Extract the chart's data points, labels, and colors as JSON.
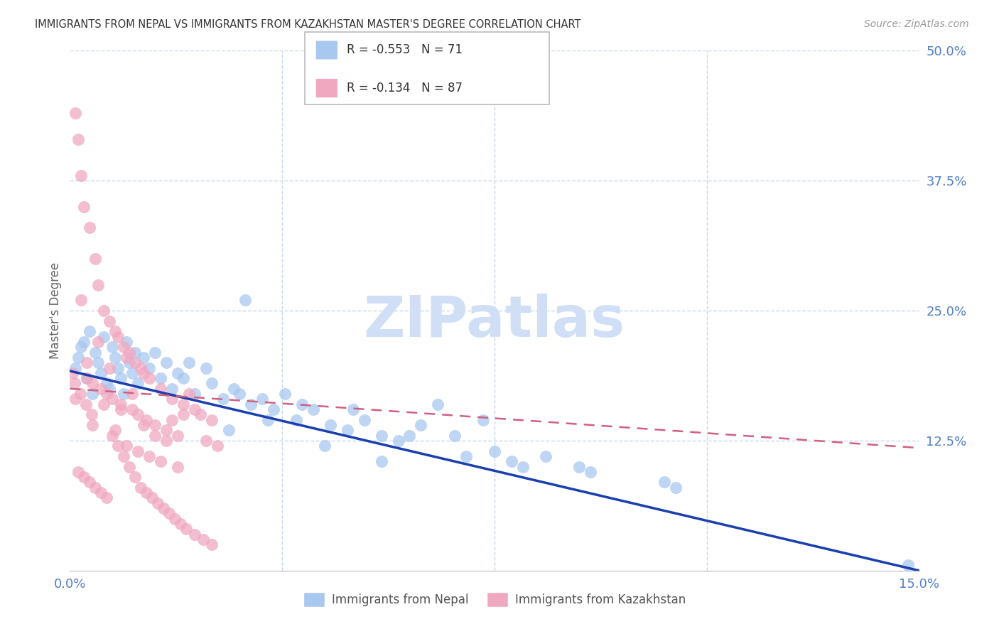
{
  "title": "IMMIGRANTS FROM NEPAL VS IMMIGRANTS FROM KAZAKHSTAN MASTER'S DEGREE CORRELATION CHART",
  "source": "Source: ZipAtlas.com",
  "ylabel": "Master's Degree",
  "x_min": 0.0,
  "x_max": 15.0,
  "y_min": 0.0,
  "y_max": 50.0,
  "y_ticks_right": [
    50.0,
    37.5,
    25.0,
    12.5
  ],
  "x_ticks": [
    0.0,
    15.0
  ],
  "nepal_R": -0.553,
  "nepal_N": 71,
  "kazakhstan_R": -0.134,
  "kazakhstan_N": 87,
  "nepal_color": "#a8c8f0",
  "kazakhstan_color": "#f0a8c0",
  "nepal_line_color": "#1a3fb0",
  "kazakhstan_line_color": "#d06080",
  "grid_color": "#c8d8ec",
  "right_tick_color": "#5080c8",
  "watermark_color": "#d0dff5",
  "watermark_text": "ZIPatlas",
  "nepal_line_intercept": 19.2,
  "nepal_line_slope": -1.28,
  "kazakhstan_line_intercept": 17.5,
  "kazakhstan_line_slope": -0.38,
  "nepal_x": [
    0.1,
    0.15,
    0.2,
    0.25,
    0.3,
    0.35,
    0.4,
    0.45,
    0.5,
    0.55,
    0.6,
    0.65,
    0.7,
    0.75,
    0.8,
    0.85,
    0.9,
    0.95,
    1.0,
    1.05,
    1.1,
    1.15,
    1.2,
    1.3,
    1.4,
    1.5,
    1.6,
    1.7,
    1.8,
    1.9,
    2.0,
    2.1,
    2.2,
    2.4,
    2.5,
    2.7,
    2.9,
    3.0,
    3.2,
    3.4,
    3.6,
    3.8,
    4.0,
    4.3,
    4.6,
    4.9,
    5.2,
    5.5,
    5.8,
    6.2,
    6.8,
    7.3,
    7.8,
    8.4,
    9.2,
    10.7,
    3.1,
    4.1,
    5.0,
    6.5,
    7.5,
    8.0,
    2.8,
    3.5,
    4.5,
    5.5,
    6.0,
    7.0,
    9.0,
    10.5,
    14.8
  ],
  "nepal_y": [
    19.5,
    20.5,
    21.5,
    22.0,
    18.5,
    23.0,
    17.0,
    21.0,
    20.0,
    19.0,
    22.5,
    18.0,
    17.5,
    21.5,
    20.5,
    19.5,
    18.5,
    17.0,
    22.0,
    20.0,
    19.0,
    21.0,
    18.0,
    20.5,
    19.5,
    21.0,
    18.5,
    20.0,
    17.5,
    19.0,
    18.5,
    20.0,
    17.0,
    19.5,
    18.0,
    16.5,
    17.5,
    17.0,
    16.0,
    16.5,
    15.5,
    17.0,
    14.5,
    15.5,
    14.0,
    13.5,
    14.5,
    13.0,
    12.5,
    14.0,
    13.0,
    14.5,
    10.5,
    11.0,
    9.5,
    8.0,
    26.0,
    16.0,
    15.5,
    16.0,
    11.5,
    10.0,
    13.5,
    14.5,
    12.0,
    10.5,
    13.0,
    11.0,
    10.0,
    8.5,
    0.5
  ],
  "kazakhstan_x": [
    0.05,
    0.1,
    0.15,
    0.2,
    0.25,
    0.3,
    0.35,
    0.4,
    0.45,
    0.5,
    0.55,
    0.6,
    0.65,
    0.7,
    0.75,
    0.8,
    0.85,
    0.9,
    0.95,
    1.0,
    1.05,
    1.1,
    1.15,
    1.2,
    1.25,
    1.3,
    1.35,
    1.4,
    1.5,
    1.6,
    1.7,
    1.8,
    1.9,
    2.0,
    2.1,
    2.2,
    2.3,
    2.4,
    2.5,
    2.6,
    0.1,
    0.2,
    0.3,
    0.4,
    0.5,
    0.6,
    0.7,
    0.8,
    0.9,
    1.0,
    1.1,
    1.2,
    1.3,
    1.4,
    1.5,
    1.6,
    1.7,
    1.8,
    1.9,
    2.0,
    0.15,
    0.25,
    0.35,
    0.45,
    0.55,
    0.65,
    0.75,
    0.85,
    0.95,
    1.05,
    1.15,
    1.25,
    1.35,
    1.45,
    1.55,
    1.65,
    1.75,
    1.85,
    1.95,
    2.05,
    2.2,
    2.35,
    2.5,
    0.08,
    0.18,
    0.28,
    0.38
  ],
  "kazakhstan_y": [
    19.0,
    44.0,
    41.5,
    38.0,
    35.0,
    20.0,
    33.0,
    18.0,
    30.0,
    27.5,
    17.5,
    25.0,
    17.0,
    24.0,
    16.5,
    23.0,
    22.5,
    16.0,
    21.5,
    20.5,
    21.0,
    15.5,
    20.0,
    15.0,
    19.5,
    19.0,
    14.5,
    18.5,
    14.0,
    17.5,
    13.5,
    16.5,
    13.0,
    16.0,
    17.0,
    15.5,
    15.0,
    12.5,
    14.5,
    12.0,
    16.5,
    26.0,
    18.5,
    14.0,
    22.0,
    16.0,
    19.5,
    13.5,
    15.5,
    12.0,
    17.0,
    11.5,
    14.0,
    11.0,
    13.0,
    10.5,
    12.5,
    14.5,
    10.0,
    15.0,
    9.5,
    9.0,
    8.5,
    8.0,
    7.5,
    7.0,
    13.0,
    12.0,
    11.0,
    10.0,
    9.0,
    8.0,
    7.5,
    7.0,
    6.5,
    6.0,
    5.5,
    5.0,
    4.5,
    4.0,
    3.5,
    3.0,
    2.5,
    18.0,
    17.0,
    16.0,
    15.0
  ]
}
